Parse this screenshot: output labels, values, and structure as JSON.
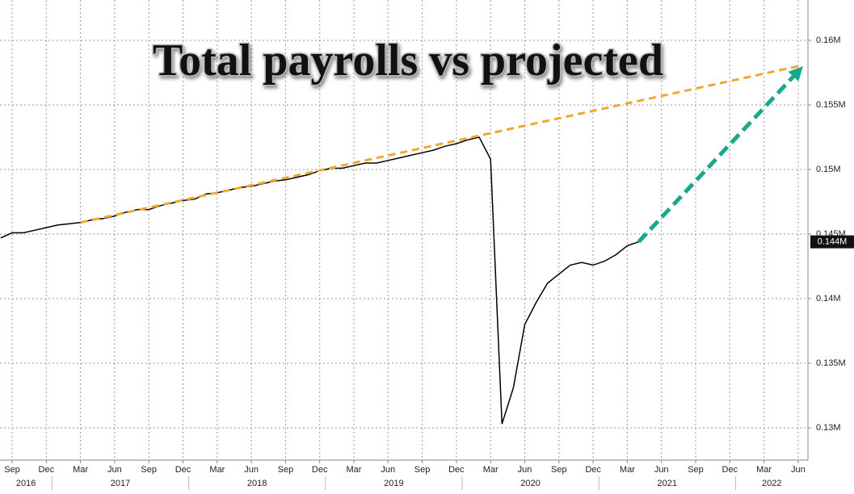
{
  "chart_data": {
    "type": "line",
    "title": "Total payrolls vs projected",
    "ylim": [
      0.1275,
      0.1625
    ],
    "yticks": [
      {
        "value": 0.13,
        "label": "0.13M"
      },
      {
        "value": 0.135,
        "label": "0.135M"
      },
      {
        "value": 0.14,
        "label": "0.14M"
      },
      {
        "value": 0.145,
        "label": "0.145M"
      },
      {
        "value": 0.15,
        "label": "0.15M"
      },
      {
        "value": 0.155,
        "label": "0.155M"
      },
      {
        "value": 0.16,
        "label": "0.16M"
      }
    ],
    "xticks": [
      {
        "value": "2016-09",
        "label": "Sep"
      },
      {
        "value": "2016-12",
        "label": "Dec"
      },
      {
        "value": "2017-03",
        "label": "Mar"
      },
      {
        "value": "2017-06",
        "label": "Jun"
      },
      {
        "value": "2017-09",
        "label": "Sep"
      },
      {
        "value": "2017-12",
        "label": "Dec"
      },
      {
        "value": "2018-03",
        "label": "Mar"
      },
      {
        "value": "2018-06",
        "label": "Jun"
      },
      {
        "value": "2018-09",
        "label": "Sep"
      },
      {
        "value": "2018-12",
        "label": "Dec"
      },
      {
        "value": "2019-03",
        "label": "Mar"
      },
      {
        "value": "2019-06",
        "label": "Jun"
      },
      {
        "value": "2019-09",
        "label": "Sep"
      },
      {
        "value": "2019-12",
        "label": "Dec"
      },
      {
        "value": "2020-03",
        "label": "Mar"
      },
      {
        "value": "2020-06",
        "label": "Jun"
      },
      {
        "value": "2020-09",
        "label": "Sep"
      },
      {
        "value": "2020-12",
        "label": "Dec"
      },
      {
        "value": "2021-03",
        "label": "Mar"
      },
      {
        "value": "2021-06",
        "label": "Jun"
      },
      {
        "value": "2021-09",
        "label": "Sep"
      },
      {
        "value": "2021-12",
        "label": "Dec"
      },
      {
        "value": "2022-03",
        "label": "Mar"
      },
      {
        "value": "2022-06",
        "label": "Jun"
      }
    ],
    "years": [
      "2016",
      "2017",
      "2018",
      "2019",
      "2020",
      "2021",
      "2022"
    ],
    "grid": true,
    "series": [
      {
        "color": "#000000",
        "style": "solid",
        "last_value_label": "0.144M",
        "x": [
          "2016-08",
          "2016-09",
          "2016-10",
          "2016-11",
          "2016-12",
          "2017-01",
          "2017-02",
          "2017-03",
          "2017-04",
          "2017-05",
          "2017-06",
          "2017-07",
          "2017-08",
          "2017-09",
          "2017-10",
          "2017-11",
          "2017-12",
          "2018-01",
          "2018-02",
          "2018-03",
          "2018-04",
          "2018-05",
          "2018-06",
          "2018-07",
          "2018-08",
          "2018-09",
          "2018-10",
          "2018-11",
          "2018-12",
          "2019-01",
          "2019-02",
          "2019-03",
          "2019-04",
          "2019-05",
          "2019-06",
          "2019-07",
          "2019-08",
          "2019-09",
          "2019-10",
          "2019-11",
          "2019-12",
          "2020-01",
          "2020-02",
          "2020-03",
          "2020-04",
          "2020-05",
          "2020-06",
          "2020-07",
          "2020-08",
          "2020-09",
          "2020-10",
          "2020-11",
          "2020-12",
          "2021-01",
          "2021-02",
          "2021-03",
          "2021-04"
        ],
        "values": [
          0.1447,
          0.1451,
          0.1451,
          0.1453,
          0.1455,
          0.1457,
          0.1458,
          0.1459,
          0.1461,
          0.1462,
          0.1464,
          0.1467,
          0.1469,
          0.1469,
          0.1472,
          0.1474,
          0.1476,
          0.1477,
          0.1481,
          0.1482,
          0.1484,
          0.1486,
          0.1487,
          0.1489,
          0.1491,
          0.1492,
          0.1494,
          0.1496,
          0.1499,
          0.1501,
          0.1501,
          0.1503,
          0.1505,
          0.1505,
          0.1507,
          0.1509,
          0.1511,
          0.1513,
          0.1515,
          0.1518,
          0.152,
          0.1523,
          0.1525,
          0.1508,
          0.1303,
          0.1331,
          0.138,
          0.1397,
          0.1412,
          0.1419,
          0.1426,
          0.1428,
          0.1426,
          0.1429,
          0.1434,
          0.1441,
          0.1444
        ]
      },
      {
        "color": "#f0a830",
        "style": "dashed",
        "x": [
          "2017-03",
          "2022-06"
        ],
        "values": [
          0.1459,
          0.158
        ]
      },
      {
        "color": "#1aa88a",
        "style": "arrow",
        "x": [
          "2021-04",
          "2022-06"
        ],
        "values": [
          0.1444,
          0.1576
        ]
      }
    ]
  }
}
